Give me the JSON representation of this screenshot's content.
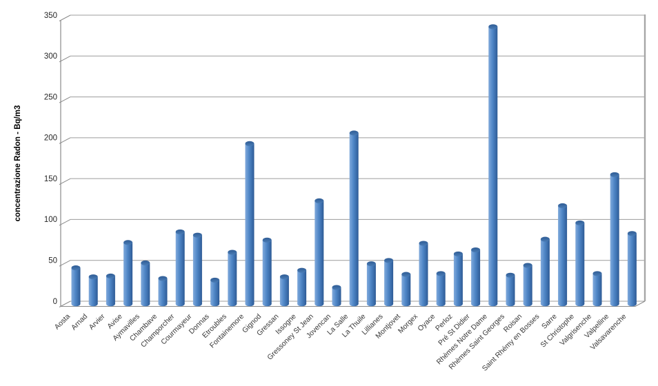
{
  "page": {
    "background": "#ffffff"
  },
  "chart_data": {
    "type": "bar",
    "style": "3d-cylinder",
    "title": "",
    "xlabel": "",
    "ylabel": "concentrazione Radon - Bq/m3",
    "ylim": [
      0,
      350
    ],
    "yticks": [
      0,
      50,
      100,
      150,
      200,
      250,
      300,
      350
    ],
    "grid": true,
    "legend": false,
    "categories": [
      "Aosta",
      "Arnad",
      "Arvier",
      "Avise",
      "Aymavilles",
      "Chambave",
      "Champorcher",
      "Courmayeur",
      "Donnas",
      "Etroubles",
      "Fontainemore",
      "Gignod",
      "Gressan",
      "Issogne",
      "Gressoney St Jean",
      "Jovencan",
      "La Salle",
      "La Thuile",
      "Lillianes",
      "Montjovet",
      "Morgex",
      "Oyace",
      "Perloz",
      "Pré St Didier",
      "Rhèmes Notre Dame",
      "Rhèmes Saint Georges",
      "Roisan",
      "Saint Rhémy en Bosses",
      "Sarre",
      "St Christophe",
      "Valgrisenche",
      "Valpelline",
      "Valsavarenche"
    ],
    "values": [
      44,
      33,
      34,
      75,
      50,
      31,
      88,
      84,
      29,
      63,
      196,
      78,
      33,
      41,
      126,
      20,
      209,
      49,
      53,
      36,
      74,
      37,
      61,
      66,
      339,
      35,
      47,
      79,
      120,
      99,
      37,
      158,
      86
    ]
  },
  "colors": {
    "bar_fill": "#4f86c6",
    "bar_highlight": "#7fa8da",
    "bar_shadow": "#2d5a94",
    "bar_cap": "#35619a",
    "gridline": "#9c9c9c",
    "wall": "#8a8a8a",
    "right_edge": "#a6a6a6",
    "tick_text": "#262626",
    "category_text": "#383838",
    "background": "#ffffff"
  }
}
